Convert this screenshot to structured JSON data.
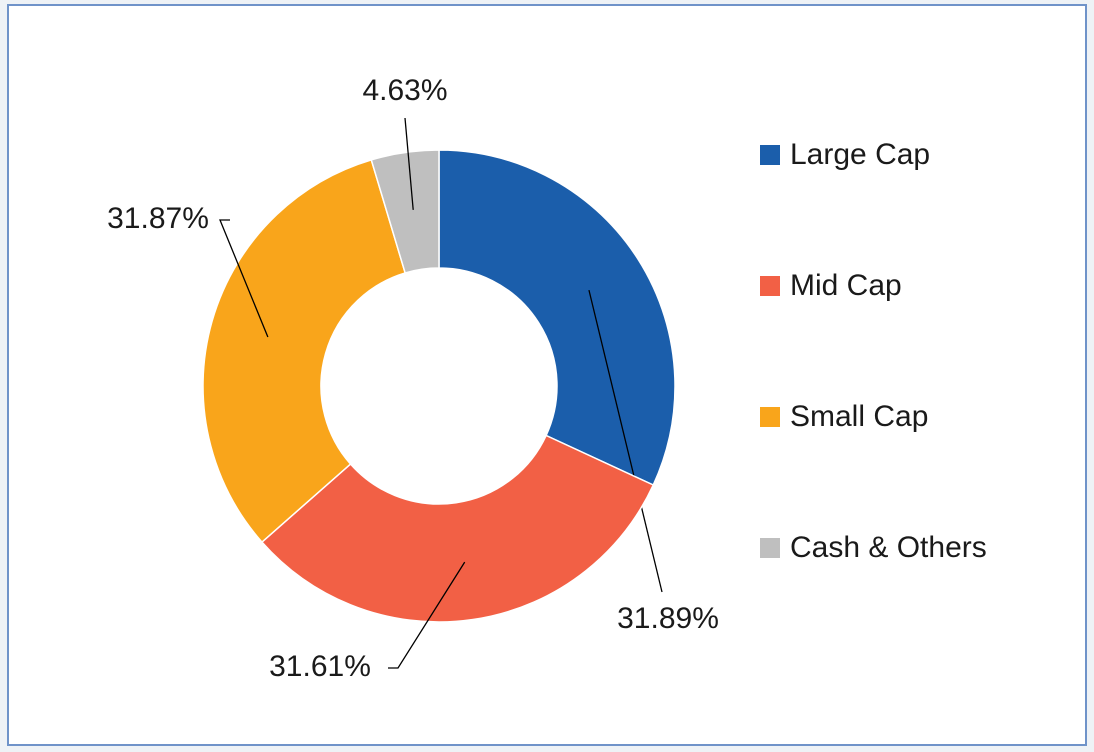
{
  "chart_data": {
    "type": "donut",
    "categories": [
      "Large Cap",
      "Mid Cap",
      "Small Cap",
      "Cash & Others"
    ],
    "values": [
      31.89,
      31.61,
      31.87,
      4.63
    ],
    "value_labels": [
      "31.89%",
      "31.61%",
      "31.87%",
      "4.63%"
    ],
    "colors": [
      "#1b5eab",
      "#f26045",
      "#f9a51b",
      "#bfbfbf"
    ],
    "legend": "right"
  }
}
